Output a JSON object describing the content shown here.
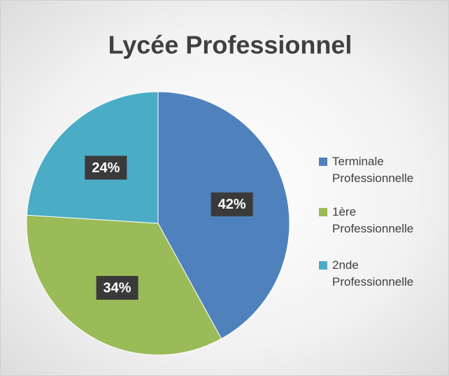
{
  "chart_data": {
    "type": "pie",
    "title": "Lycée Professionnel",
    "categories": [
      "Terminale Professionnelle",
      "1ère Professionnelle",
      "2nde Professionnelle"
    ],
    "values": [
      42,
      34,
      24
    ],
    "value_labels": [
      "42%",
      "34%",
      "24%"
    ],
    "colors": [
      "#4f81bd",
      "#9bbb59",
      "#4bacc6"
    ],
    "legend": "right"
  }
}
